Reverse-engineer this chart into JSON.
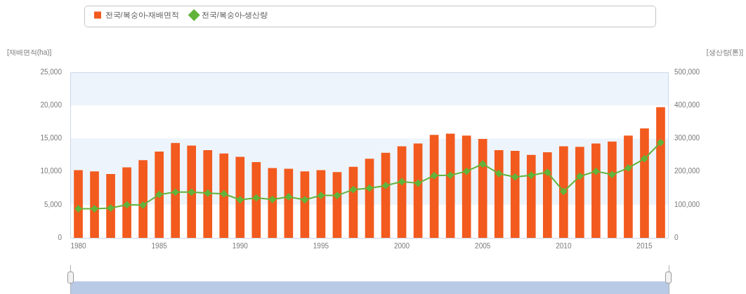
{
  "chart_data": {
    "type": "bar",
    "x": [
      1980,
      1981,
      1982,
      1983,
      1984,
      1985,
      1986,
      1987,
      1988,
      1989,
      1990,
      1991,
      1992,
      1993,
      1994,
      1995,
      1996,
      1997,
      1998,
      1999,
      2000,
      2001,
      2002,
      2003,
      2004,
      2005,
      2006,
      2007,
      2008,
      2009,
      2010,
      2011,
      2012,
      2013,
      2014,
      2015,
      2016
    ],
    "series": [
      {
        "name": "전국/복숭아-재배면적",
        "color": "#f25a1e",
        "values": [
          10200,
          10000,
          9600,
          10600,
          11700,
          13000,
          14300,
          13900,
          13200,
          12700,
          12200,
          11400,
          10500,
          10400,
          10000,
          10200,
          9900,
          10700,
          11900,
          12800,
          13800,
          14200,
          15500,
          15700,
          15400,
          14900,
          13200,
          13100,
          12500,
          12900,
          13800,
          13700,
          14200,
          14500,
          15400,
          16500,
          19700
        ]
      },
      {
        "name": "전국/복숭아-생산량",
        "type": "line",
        "axis": "y2",
        "color": "#62b33a",
        "values": [
          88000,
          88000,
          90000,
          100000,
          99000,
          131000,
          138000,
          138000,
          135000,
          133000,
          115000,
          121000,
          116000,
          124000,
          115000,
          128000,
          128000,
          146000,
          150000,
          158000,
          170000,
          165000,
          188000,
          189000,
          201000,
          223000,
          194000,
          184000,
          189000,
          198000,
          140000,
          186000,
          201000,
          191000,
          211000,
          239000,
          288000
        ]
      }
    ],
    "xlim": [
      1979.5,
      2016.5
    ],
    "xticks": [
      1980,
      1985,
      1990,
      1995,
      2000,
      2005,
      2010,
      2015
    ],
    "ylim": [
      0,
      25000
    ],
    "yticks": [
      0,
      {
        "value": 5000,
        "label": "5,000"
      },
      {
        "value": 10000,
        "label": "10,000"
      },
      {
        "value": 15000,
        "label": "15,000"
      },
      {
        "value": 20000,
        "label": "20,000"
      },
      {
        "value": 25000,
        "label": "25,000"
      }
    ],
    "y2lim": [
      0,
      500000
    ],
    "y2ticks": [
      0,
      {
        "value": 100000,
        "label": "100,000"
      },
      {
        "value": 200000,
        "label": "200,000"
      },
      {
        "value": 300000,
        "label": "300,000"
      },
      {
        "value": 400000,
        "label": "400,000"
      },
      {
        "value": 500000,
        "label": "500,000"
      }
    ],
    "ylabel": "[재배면적(ha)]",
    "y2label": "[생산량(톤)]",
    "bands": [
      {
        "axis": "y",
        "from": 20000,
        "to": 25000,
        "color": "#eef4fb"
      },
      {
        "axis": "y",
        "from": 5000,
        "to": 15000,
        "color": "#eef4fb"
      }
    ],
    "legend": "top",
    "grid": false,
    "marker": "diamond",
    "line_style": "solid"
  }
}
